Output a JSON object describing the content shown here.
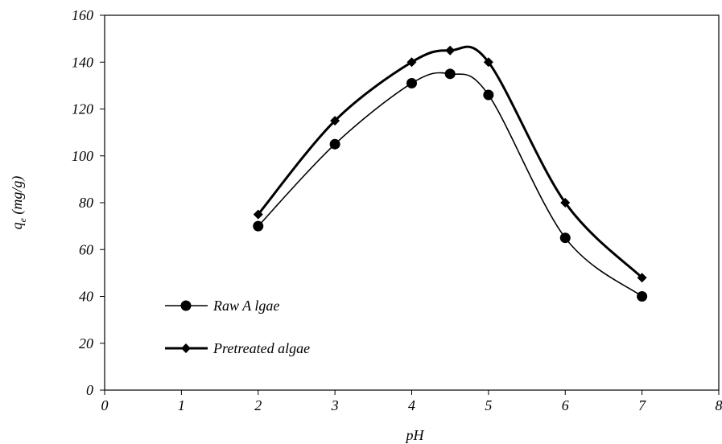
{
  "chart_data": {
    "type": "line",
    "xlabel": "pH",
    "ylabel_main": "q",
    "ylabel_sub": "e",
    "ylabel_unit": " (mg/g)",
    "xlim": [
      0,
      8
    ],
    "ylim": [
      0,
      160
    ],
    "xticks": [
      0,
      1,
      2,
      3,
      4,
      5,
      6,
      7,
      8
    ],
    "yticks": [
      0,
      20,
      40,
      60,
      80,
      100,
      120,
      140,
      160
    ],
    "grid": false,
    "legend_position": "bottom-left",
    "series": [
      {
        "name": "Raw A lgae",
        "marker": "circle",
        "color": "#000000",
        "x": [
          2,
          3,
          4,
          4.5,
          5,
          6,
          7
        ],
        "y": [
          70,
          105,
          131,
          135,
          126,
          65,
          40
        ]
      },
      {
        "name": "Pretreated algae",
        "marker": "diamond",
        "color": "#000000",
        "x": [
          2,
          3,
          4,
          4.5,
          5,
          6,
          7
        ],
        "y": [
          75,
          115,
          140,
          145,
          140,
          80,
          48
        ]
      }
    ]
  }
}
